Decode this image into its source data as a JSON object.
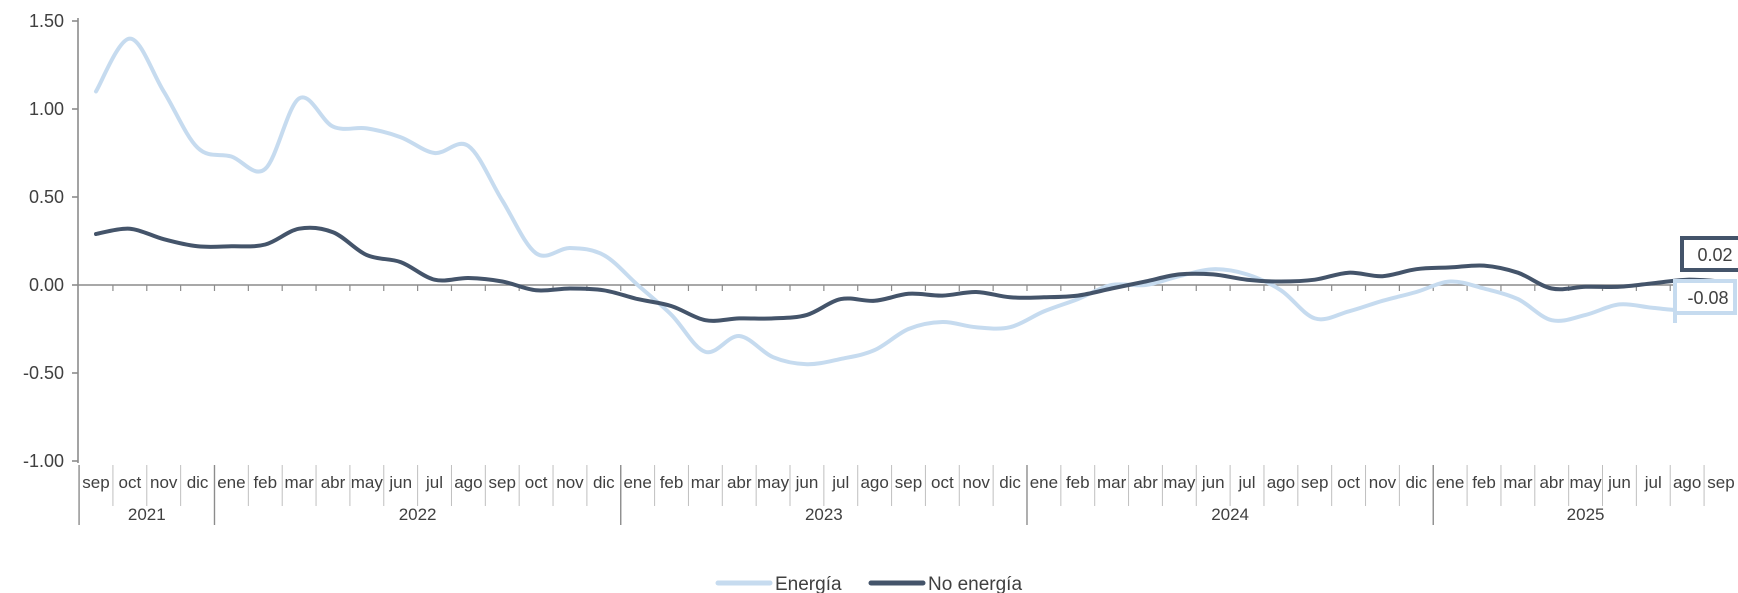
{
  "chart_data": {
    "type": "line",
    "ylim": [
      -1.0,
      1.5
    ],
    "y_ticks": [
      "1.50",
      "1.00",
      "0.50",
      "0.00",
      "-0.50",
      "-1.00"
    ],
    "y_tick_values": [
      1.5,
      1.0,
      0.5,
      0.0,
      -0.5,
      -1.0
    ],
    "x": [
      "sep",
      "oct",
      "nov",
      "dic",
      "ene",
      "feb",
      "mar",
      "abr",
      "may",
      "jun",
      "jul",
      "ago",
      "sep",
      "oct",
      "nov",
      "dic",
      "ene",
      "feb",
      "mar",
      "abr",
      "may",
      "jun",
      "jul",
      "ago",
      "sep",
      "oct",
      "nov",
      "dic",
      "ene",
      "feb",
      "mar",
      "abr",
      "may",
      "jun",
      "jul",
      "ago",
      "sep",
      "oct",
      "nov",
      "dic",
      "ene",
      "feb",
      "mar",
      "abr",
      "may",
      "jun",
      "jul",
      "ago",
      "sep"
    ],
    "years": [
      {
        "label": "2021",
        "start": 0,
        "count": 4
      },
      {
        "label": "2022",
        "start": 4,
        "count": 12
      },
      {
        "label": "2023",
        "start": 16,
        "count": 12
      },
      {
        "label": "2024",
        "start": 28,
        "count": 12
      },
      {
        "label": "2025",
        "start": 40,
        "count": 9
      }
    ],
    "series": [
      {
        "name": "Energía",
        "color": "#c6dbef",
        "values": [
          1.1,
          1.4,
          1.1,
          0.78,
          0.73,
          0.66,
          1.06,
          0.9,
          0.89,
          0.84,
          0.75,
          0.79,
          0.48,
          0.18,
          0.21,
          0.17,
          0.0,
          -0.17,
          -0.38,
          -0.29,
          -0.41,
          -0.45,
          -0.42,
          -0.37,
          -0.25,
          -0.21,
          -0.24,
          -0.24,
          -0.15,
          -0.08,
          0.0,
          0.0,
          0.05,
          0.09,
          0.06,
          -0.03,
          -0.19,
          -0.15,
          -0.09,
          -0.04,
          0.02,
          -0.02,
          -0.08,
          -0.2,
          -0.17,
          -0.11,
          -0.13,
          -0.14,
          -0.08
        ]
      },
      {
        "name": "No energía",
        "color": "#44546a",
        "values": [
          0.29,
          0.32,
          0.26,
          0.22,
          0.22,
          0.23,
          0.32,
          0.3,
          0.17,
          0.13,
          0.03,
          0.04,
          0.02,
          -0.03,
          -0.02,
          -0.03,
          -0.08,
          -0.12,
          -0.2,
          -0.19,
          -0.19,
          -0.17,
          -0.08,
          -0.09,
          -0.05,
          -0.06,
          -0.04,
          -0.07,
          -0.07,
          -0.06,
          -0.02,
          0.02,
          0.06,
          0.06,
          0.03,
          0.02,
          0.03,
          0.07,
          0.05,
          0.09,
          0.1,
          0.11,
          0.07,
          -0.02,
          -0.01,
          -0.01,
          0.01,
          0.03,
          0.02
        ]
      }
    ],
    "callouts": [
      {
        "series": 1,
        "label": "0.02"
      },
      {
        "series": 0,
        "label": "-0.08"
      }
    ],
    "legend_position": "bottom"
  }
}
